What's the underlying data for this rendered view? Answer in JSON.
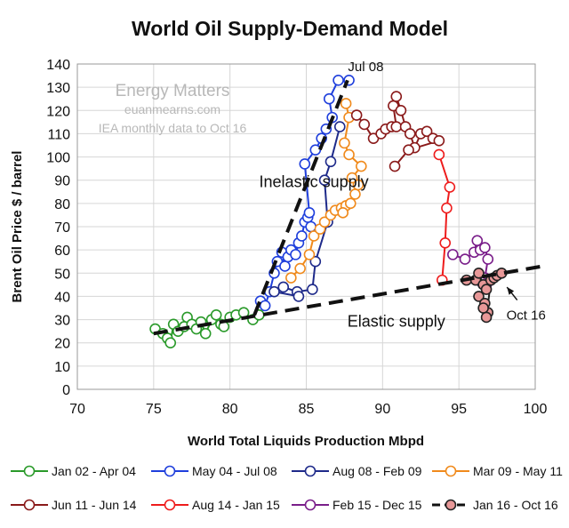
{
  "chart_data": {
    "type": "line",
    "title": "World Oil Supply-Demand Model",
    "xlabel": "World Total Liquids Production Mbpd",
    "ylabel": "Brent Oil Price $ / barrel",
    "xlim": [
      70,
      100
    ],
    "ylim": [
      0,
      140
    ],
    "xticks": [
      70,
      75,
      80,
      85,
      90,
      95,
      100
    ],
    "yticks": [
      0,
      10,
      20,
      30,
      40,
      50,
      60,
      70,
      80,
      90,
      100,
      110,
      120,
      130,
      140
    ],
    "grid": true,
    "legend_position": "bottom",
    "watermark": [
      "Energy Matters",
      "euanmearns.com",
      "IEA monthly data to Oct 16"
    ],
    "annotations": [
      {
        "text": "Jul 08",
        "x": 88.9,
        "y": 137
      },
      {
        "text": "Inelastic supply",
        "x": 85.5,
        "y": 87
      },
      {
        "text": "Elastic supply",
        "x": 90.9,
        "y": 27
      },
      {
        "text": "Oct 16",
        "x": 99.4,
        "y": 30,
        "arrow_to": [
          97.8,
          45.5
        ]
      }
    ],
    "series": [
      {
        "name": "Jan 02 - Apr 04",
        "color": "#2a9a2a",
        "fill": "#ffffff",
        "points": [
          [
            75.1,
            26
          ],
          [
            75.6,
            24
          ],
          [
            75.9,
            22
          ],
          [
            76.1,
            20
          ],
          [
            76.3,
            28
          ],
          [
            76.6,
            25
          ],
          [
            77.0,
            27
          ],
          [
            77.2,
            31
          ],
          [
            77.5,
            28
          ],
          [
            77.8,
            26
          ],
          [
            78.1,
            29
          ],
          [
            78.4,
            24
          ],
          [
            78.8,
            30
          ],
          [
            79.1,
            32
          ],
          [
            79.4,
            28
          ],
          [
            79.6,
            27
          ],
          [
            80.0,
            31
          ],
          [
            80.4,
            32
          ],
          [
            80.9,
            33
          ],
          [
            81.5,
            30
          ],
          [
            81.9,
            32
          ]
        ]
      },
      {
        "name": "May 04 - Jul 08",
        "color": "#1f3fdc",
        "fill": "#ffffff",
        "points": [
          [
            82.0,
            38
          ],
          [
            82.3,
            36
          ],
          [
            82.6,
            42
          ],
          [
            82.9,
            50
          ],
          [
            83.1,
            55
          ],
          [
            83.4,
            59
          ],
          [
            83.6,
            53
          ],
          [
            83.8,
            57
          ],
          [
            84.0,
            60
          ],
          [
            84.3,
            58
          ],
          [
            84.5,
            63
          ],
          [
            84.7,
            66
          ],
          [
            84.9,
            72
          ],
          [
            85.1,
            74
          ],
          [
            85.3,
            70
          ],
          [
            85.2,
            76
          ],
          [
            84.9,
            97
          ],
          [
            85.6,
            103
          ],
          [
            86.0,
            108
          ],
          [
            86.3,
            112
          ],
          [
            86.7,
            117
          ],
          [
            86.5,
            125
          ],
          [
            87.1,
            133
          ],
          [
            87.8,
            133
          ]
        ]
      },
      {
        "name": "Aug 08 - Feb 09",
        "color": "#1e2a8a",
        "fill": "#ffffff",
        "points": [
          [
            87.2,
            113
          ],
          [
            86.6,
            98
          ],
          [
            86.2,
            90
          ],
          [
            86.4,
            72
          ],
          [
            85.6,
            55
          ],
          [
            85.4,
            43
          ],
          [
            84.4,
            42
          ],
          [
            83.5,
            44
          ],
          [
            82.9,
            42
          ],
          [
            84.5,
            40
          ]
        ]
      },
      {
        "name": "Mar 09 - May 11",
        "color": "#f08a1c",
        "fill": "#ffffff",
        "points": [
          [
            84.0,
            48
          ],
          [
            84.6,
            52
          ],
          [
            85.2,
            58
          ],
          [
            85.5,
            66
          ],
          [
            85.9,
            69
          ],
          [
            86.2,
            72
          ],
          [
            86.6,
            75
          ],
          [
            86.9,
            77
          ],
          [
            87.3,
            78
          ],
          [
            87.6,
            79
          ],
          [
            87.4,
            76
          ],
          [
            87.9,
            80
          ],
          [
            88.2,
            84
          ],
          [
            88.4,
            88
          ],
          [
            88.0,
            91
          ],
          [
            88.6,
            96
          ],
          [
            87.8,
            101
          ],
          [
            87.5,
            106
          ],
          [
            87.8,
            117
          ],
          [
            87.6,
            123
          ]
        ]
      },
      {
        "name": "Jun 11 - Jun 14",
        "color": "#8a1a1a",
        "fill": "#ffffff",
        "points": [
          [
            88.3,
            118
          ],
          [
            88.8,
            114
          ],
          [
            89.4,
            108
          ],
          [
            89.9,
            110
          ],
          [
            90.2,
            112
          ],
          [
            90.6,
            113
          ],
          [
            90.9,
            113
          ],
          [
            90.7,
            122
          ],
          [
            90.9,
            126
          ],
          [
            91.2,
            120
          ],
          [
            91.5,
            113
          ],
          [
            91.8,
            110
          ],
          [
            92.1,
            104
          ],
          [
            92.5,
            110
          ],
          [
            92.9,
            111
          ],
          [
            93.3,
            108
          ],
          [
            93.7,
            107
          ],
          [
            91.7,
            103
          ],
          [
            90.8,
            96
          ]
        ]
      },
      {
        "name": "Aug 14 - Jan 15",
        "color": "#ee1c1c",
        "fill": "#ffffff",
        "points": [
          [
            93.7,
            101
          ],
          [
            94.4,
            87
          ],
          [
            94.2,
            78
          ],
          [
            94.1,
            63
          ],
          [
            93.9,
            47
          ]
        ]
      },
      {
        "name": "Feb 15 - Dec 15",
        "color": "#7a1e8a",
        "fill": "#ffffff",
        "points": [
          [
            94.6,
            58
          ],
          [
            95.4,
            56
          ],
          [
            96.0,
            59
          ],
          [
            96.2,
            64
          ],
          [
            96.4,
            60
          ],
          [
            96.7,
            61
          ],
          [
            96.9,
            56
          ],
          [
            96.7,
            48
          ],
          [
            96.5,
            46
          ],
          [
            96.8,
            45
          ]
        ]
      },
      {
        "name": "Jan 16 - Oct 16",
        "color": "#222222",
        "fill": "#e89898",
        "points": [
          [
            95.5,
            47
          ],
          [
            96.1,
            47
          ],
          [
            96.3,
            50
          ],
          [
            96.6,
            45
          ],
          [
            96.8,
            43
          ],
          [
            96.3,
            40
          ],
          [
            96.7,
            37
          ],
          [
            96.9,
            33
          ],
          [
            96.6,
            35
          ],
          [
            96.8,
            31
          ],
          [
            97.1,
            47
          ],
          [
            97.3,
            48
          ],
          [
            97.5,
            49
          ],
          [
            97.8,
            50
          ]
        ]
      }
    ],
    "trend_lines": [
      {
        "name": "inelastic",
        "from": [
          81.6,
          32
        ],
        "to": [
          87.7,
          133
        ]
      },
      {
        "name": "elastic",
        "from": [
          75.0,
          24
        ],
        "to": [
          100.5,
          53
        ]
      }
    ]
  }
}
